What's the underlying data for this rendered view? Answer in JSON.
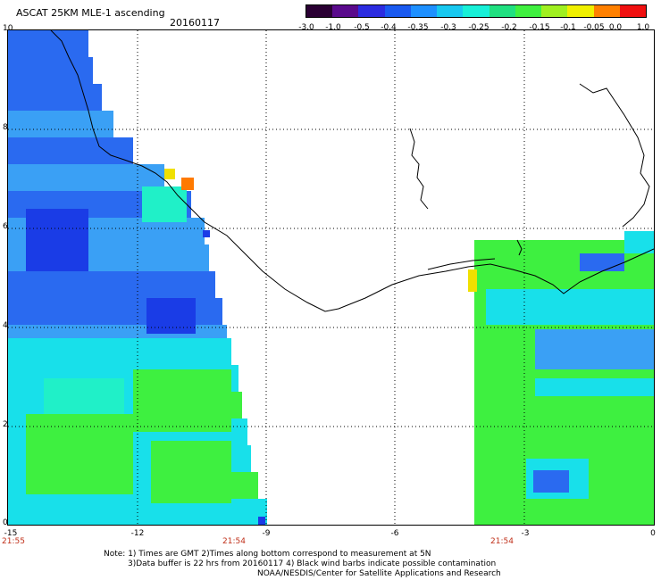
{
  "header": {
    "title": "ASCAT 25KM MLE-1 ascending",
    "date": "20160117"
  },
  "colorbar": {
    "labels": [
      "-3.0",
      "-1.0",
      "-0.5",
      "-0.4",
      "-0.35",
      "-0.3",
      "-0.25",
      "-0.2",
      "-0.15",
      "-0.1",
      "-0.05",
      "0.0",
      "1.0"
    ],
    "colors": [
      "#2a0033",
      "#5a0a8c",
      "#2c2ce0",
      "#1a5af0",
      "#1e90ff",
      "#18c8f0",
      "#18f0d8",
      "#20e080",
      "#40f040",
      "#a0f020",
      "#f0f000",
      "#ff8000",
      "#f01010"
    ]
  },
  "map": {
    "lat_ticks": [
      "10",
      "8",
      "6",
      "4",
      "2",
      "0"
    ],
    "lon_ticks": [
      "-15",
      "-12",
      "-9",
      "-6",
      "-3",
      "0"
    ],
    "times": [
      "21:55",
      "21:54",
      "21:54"
    ],
    "field_colors": {
      "deep_blue": "#1a3ce6",
      "blue": "#2a6af0",
      "light_blue": "#3aa0f5",
      "cyan": "#18e0ea",
      "aqua": "#20f0c8",
      "green": "#3ef040",
      "lime": "#7cf040",
      "yellow": "#f0e000",
      "orange": "#ff7a00"
    }
  },
  "footer": {
    "line1": "Note: 1) Times are GMT 2)Times along bottom correspond to measurement at 5N",
    "line2": "3)Data buffer is 22 hrs from 20160117 4) Black wind barbs indicate possible contamination",
    "line3": "NOAA/NESDIS/Center for Satellite Applications and Research"
  }
}
